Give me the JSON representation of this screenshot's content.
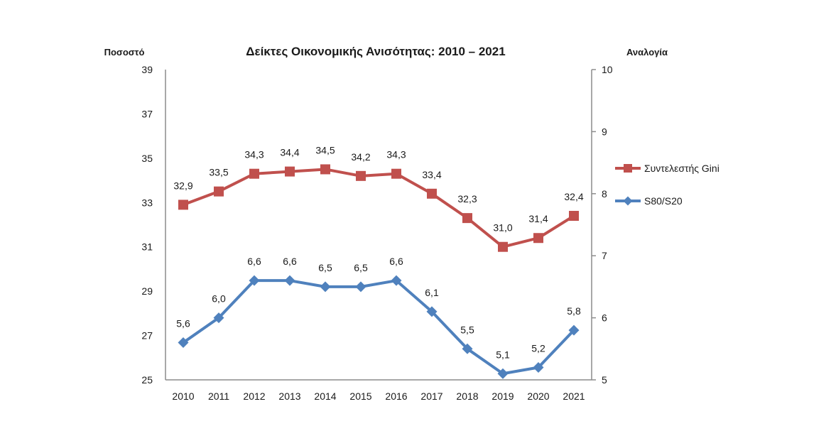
{
  "chart_data": {
    "type": "line",
    "title": "Δείκτες Οικονομικής Ανισότητας: 2010 – 2021",
    "ylabel_left": "Ποσοστό",
    "ylabel_right": "Αναλογία",
    "xlabel": "",
    "categories": [
      "2010",
      "2011",
      "2012",
      "2013",
      "2014",
      "2015",
      "2016",
      "2017",
      "2018",
      "2019",
      "2020",
      "2021"
    ],
    "y_left": {
      "range": [
        25,
        39
      ],
      "ticks": [
        25,
        27,
        29,
        31,
        33,
        35,
        37,
        39
      ]
    },
    "y_right": {
      "range": [
        5,
        10
      ],
      "ticks": [
        5,
        6,
        7,
        8,
        9,
        10
      ]
    },
    "grid": false,
    "legend_position": "right",
    "series": [
      {
        "name": "Συντελεστής Gini",
        "axis": "left",
        "color": "#C0504D",
        "marker": "square",
        "values": [
          32.9,
          33.5,
          34.3,
          34.4,
          34.5,
          34.2,
          34.3,
          33.4,
          32.3,
          31.0,
          31.4,
          32.4
        ],
        "labels": [
          "32,9",
          "33,5",
          "34,3",
          "34,4",
          "34,5",
          "34,2",
          "34,3",
          "33,4",
          "32,3",
          "31,0",
          "31,4",
          "32,4"
        ]
      },
      {
        "name": "S80/S20",
        "axis": "right",
        "color": "#4F81BD",
        "marker": "diamond",
        "values": [
          5.6,
          6.0,
          6.6,
          6.6,
          6.5,
          6.5,
          6.6,
          6.1,
          5.5,
          5.1,
          5.2,
          5.8
        ],
        "labels": [
          "5,6",
          "6,0",
          "6,6",
          "6,6",
          "6,5",
          "6,5",
          "6,6",
          "6,1",
          "5,5",
          "5,1",
          "5,2",
          "5,8"
        ]
      }
    ]
  }
}
